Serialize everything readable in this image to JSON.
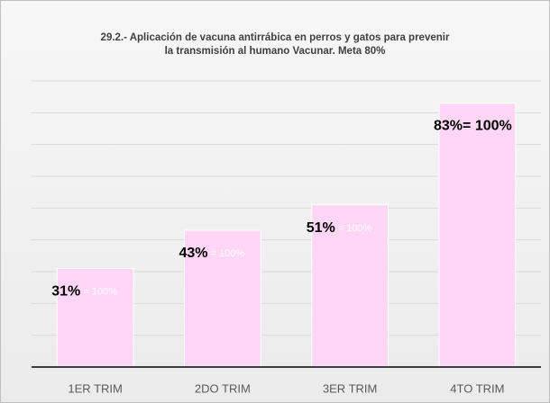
{
  "chart_data": {
    "type": "bar",
    "title": [
      "29.2.- Aplicación de vacuna antirrábica en perros y gatos para prevenir",
      "la transmisión al humano Vacunar.  Meta 80%"
    ],
    "categories": [
      "1ER TRIM",
      "2DO TRIM",
      "3ER TRIM",
      "4TO TRIM"
    ],
    "values": [
      31,
      43,
      51,
      83
    ],
    "value_labels": [
      "31%",
      "43%",
      "51%",
      "83%"
    ],
    "label_suffixes": [
      " = 100%",
      " = 100%",
      " = 100%",
      "= 100%"
    ],
    "label_suffix_colors": [
      "#ffffff",
      "#ffffff",
      "#ffffff",
      "#000000"
    ],
    "label_suffix_bold": [
      false,
      false,
      false,
      true
    ],
    "color": "#ffd6f5",
    "ylim": [
      0,
      90
    ],
    "yticks": [
      0,
      10,
      20,
      30,
      40,
      50,
      60,
      70,
      80,
      90
    ],
    "grid": true
  }
}
